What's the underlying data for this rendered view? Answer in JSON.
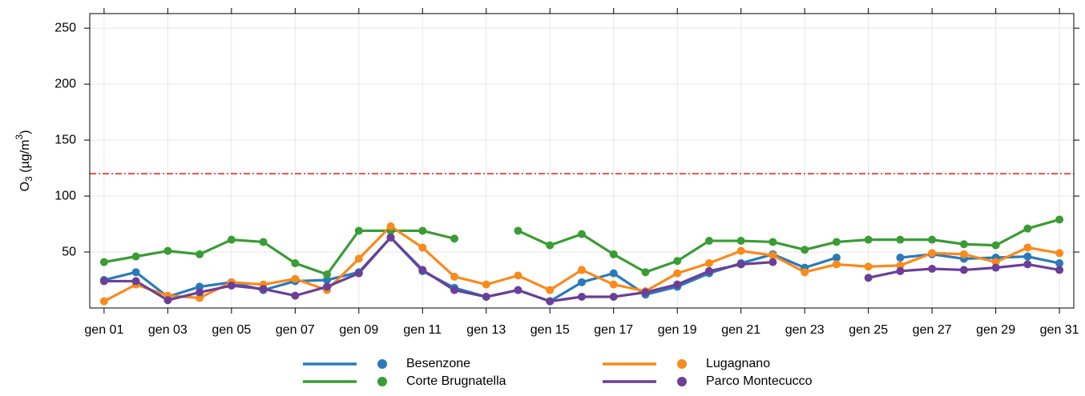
{
  "chart_data": {
    "type": "line",
    "ylabel": [
      "O",
      "3",
      " (µg/m",
      "3",
      ")"
    ],
    "x": [
      1,
      2,
      3,
      4,
      5,
      6,
      7,
      8,
      9,
      10,
      11,
      12,
      13,
      14,
      15,
      16,
      17,
      18,
      19,
      20,
      21,
      22,
      23,
      24,
      25,
      26,
      27,
      28,
      29,
      30,
      31
    ],
    "xlim": [
      0.55,
      31.45
    ],
    "xticks": [
      {
        "value": 1,
        "label": "gen 01"
      },
      {
        "value": 3,
        "label": "gen 03"
      },
      {
        "value": 5,
        "label": "gen 05"
      },
      {
        "value": 7,
        "label": "gen 07"
      },
      {
        "value": 9,
        "label": "gen 09"
      },
      {
        "value": 11,
        "label": "gen 11"
      },
      {
        "value": 13,
        "label": "gen 13"
      },
      {
        "value": 15,
        "label": "gen 15"
      },
      {
        "value": 17,
        "label": "gen 17"
      },
      {
        "value": 19,
        "label": "gen 19"
      },
      {
        "value": 21,
        "label": "gen 21"
      },
      {
        "value": 23,
        "label": "gen 23"
      },
      {
        "value": 25,
        "label": "gen 25"
      },
      {
        "value": 27,
        "label": "gen 27"
      },
      {
        "value": 29,
        "label": "gen 29"
      },
      {
        "value": 31,
        "label": "gen 31"
      }
    ],
    "ylim": [
      0,
      263
    ],
    "yticks": [
      50,
      100,
      150,
      200,
      250
    ],
    "grid": true,
    "threshold": 120,
    "threshold_color": "#e31a1c",
    "series": [
      {
        "name": "Besenzone",
        "color": "#2a7ab9",
        "values": [
          25,
          32,
          10,
          19,
          23,
          16,
          24,
          25,
          32,
          63,
          33,
          18,
          10,
          16,
          6,
          23,
          31,
          12,
          19,
          31,
          40,
          48,
          36,
          45,
          null,
          45,
          48,
          44,
          45,
          46,
          40
        ]
      },
      {
        "name": "Corte Brugnatella",
        "color": "#3a9c34",
        "values": [
          41,
          46,
          51,
          48,
          61,
          59,
          40,
          30,
          69,
          69,
          69,
          62,
          null,
          69,
          56,
          66,
          48,
          32,
          42,
          60,
          60,
          59,
          52,
          59,
          61,
          61,
          61,
          57,
          56,
          71,
          79
        ]
      },
      {
        "name": "Lugagnano",
        "color": "#f98a1c",
        "values": [
          6,
          21,
          11,
          9,
          23,
          21,
          26,
          16,
          44,
          73,
          54,
          28,
          21,
          29,
          16,
          34,
          21,
          15,
          31,
          40,
          51,
          47,
          32,
          39,
          37,
          38,
          49,
          48,
          41,
          54,
          49
        ]
      },
      {
        "name": "Parco Montecucco",
        "color": "#6b3f98",
        "values": [
          24,
          24,
          7,
          14,
          20,
          17,
          11,
          19,
          31,
          63,
          34,
          16,
          10,
          16,
          6,
          10,
          10,
          14,
          21,
          33,
          39,
          41,
          null,
          null,
          27,
          33,
          35,
          34,
          36,
          39,
          34
        ]
      }
    ]
  }
}
